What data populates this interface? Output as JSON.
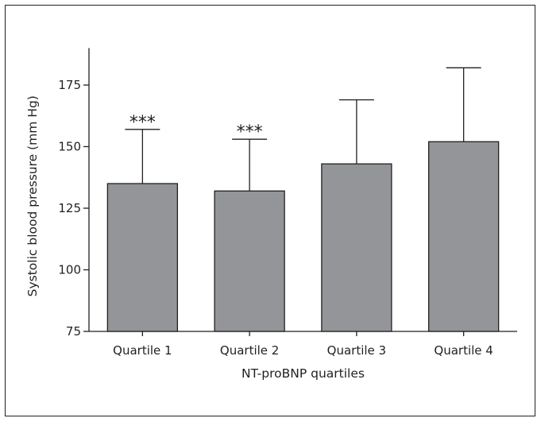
{
  "chart_data": {
    "type": "bar",
    "categories": [
      "Quartile 1",
      "Quartile 2",
      "Quartile 3",
      "Quartile 4"
    ],
    "values": [
      135,
      132,
      143,
      152
    ],
    "error_upper": [
      157,
      153,
      169,
      182
    ],
    "annotations": [
      "***",
      "***",
      "",
      ""
    ],
    "xlabel": "NT-proBNP quartiles",
    "ylabel": "Systolic blood pressure (mm Hg)",
    "ylim": [
      75,
      190
    ],
    "yticks": [
      75,
      100,
      125,
      150,
      175
    ],
    "grid": false,
    "legend": "none",
    "colors": {
      "bar_fill": "#939598",
      "stroke": "#231f20"
    }
  }
}
